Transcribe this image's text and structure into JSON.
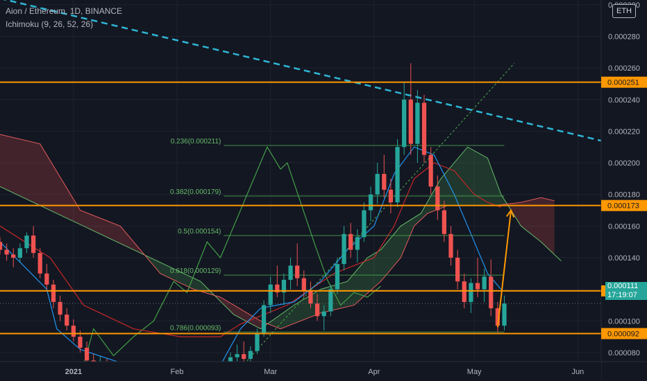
{
  "legend": {
    "title": "Aion / Ethereum, 1D, BINANCE",
    "indicator": "Ichimoku (9, 26, 52, 26)"
  },
  "currency_button": "ETH",
  "current_price": {
    "value": "0.000111",
    "timer": "17:19:07",
    "color": "#26a69a"
  },
  "chart_data": {
    "type": "line",
    "series_type": "candlestick",
    "x_tick_labels": [
      "2021",
      "Feb",
      "Mar",
      "Apr",
      "May",
      "Jun"
    ],
    "y_tick_labels": [
      "0.000080",
      "0.000100",
      "0.000120",
      "0.000140",
      "0.000160",
      "0.000180",
      "0.000200",
      "0.000220",
      "0.000240",
      "0.000260",
      "0.000280",
      "0.000300"
    ],
    "y_range": [
      6.2e-05,
      0.000303
    ],
    "x_range": [
      "2020-12-10",
      "2021-06-08"
    ],
    "horizontal_levels": [
      {
        "label": "0.000251",
        "value": 0.000251,
        "color": "#ff9800"
      },
      {
        "label": "0.000173",
        "value": 0.000173,
        "color": "#ff9800"
      },
      {
        "label": "0.000119",
        "value": 0.000119,
        "color": "#ff9800"
      },
      {
        "label": "0.000092",
        "value": 9.2e-05,
        "color": "#ff9800"
      }
    ],
    "fib_levels": [
      {
        "label": "0.236(0.000211)",
        "value": 0.000211
      },
      {
        "label": "0.382(0.000179)",
        "value": 0.000179
      },
      {
        "label": "0.5(0.000154)",
        "value": 0.000154
      },
      {
        "label": "0.618(0.000129)",
        "value": 0.000129
      },
      {
        "label": "0.786(0.000093)",
        "value": 9.3e-05
      }
    ],
    "fib_range": [
      "2021-02-15",
      "2021-05-10"
    ],
    "trendlines": [
      {
        "kind": "dashed-resistance",
        "from": [
          "2020-12-10",
          0.000304
        ],
        "to": [
          "2021-06-08",
          0.000214
        ],
        "color": "#2fb6d6"
      },
      {
        "kind": "dotted-support",
        "from": [
          "2021-02-17",
          6.3e-05
        ],
        "to": [
          "2021-05-13",
          0.000263
        ],
        "color": "#4caf50"
      }
    ],
    "arrow": {
      "from": [
        "2021-05-08",
        9.6e-05
      ],
      "to": [
        "2021-05-12",
        0.00017
      ],
      "color": "#ff9800"
    },
    "candles": [
      [
        "2020-12-10",
        0.00015,
        0.000153,
        0.000142,
        0.000145
      ],
      [
        "2020-12-12",
        0.000145,
        0.000149,
        0.000138,
        0.000142
      ],
      [
        "2020-12-14",
        0.000142,
        0.000146,
        0.000134,
        0.00014
      ],
      [
        "2020-12-16",
        0.00014,
        0.000149,
        0.000137,
        0.000146
      ],
      [
        "2020-12-18",
        0.000146,
        0.000156,
        0.000143,
        0.000154
      ],
      [
        "2020-12-20",
        0.000154,
        0.00016,
        0.00014,
        0.000143
      ],
      [
        "2020-12-22",
        0.000143,
        0.000146,
        0.000127,
        0.00013
      ],
      [
        "2020-12-24",
        0.00013,
        0.000136,
        0.00012,
        0.000123
      ],
      [
        "2020-12-26",
        0.000123,
        0.000126,
        0.000108,
        0.000112
      ],
      [
        "2020-12-28",
        0.000112,
        0.000116,
        0.0001,
        0.000104
      ],
      [
        "2020-12-30",
        0.000104,
        0.000108,
        9.4e-05,
        9.7e-05
      ],
      [
        "2021-01-01",
        9.7e-05,
        0.000101,
        8.7e-05,
        9e-05
      ],
      [
        "2021-01-03",
        9e-05,
        9.4e-05,
        8e-05,
        8.3e-05
      ],
      [
        "2021-01-05",
        8.3e-05,
        8.7e-05,
        7.1e-05,
        7.5e-05
      ],
      [
        "2021-01-07",
        7.5e-05,
        7.9e-05,
        6.4e-05,
        6.8e-05
      ],
      [
        "2021-01-09",
        6.8e-05,
        7.8e-05,
        6.6e-05,
        7.4e-05
      ],
      [
        "2021-01-11",
        7.4e-05,
        7.6e-05,
        6.2e-05,
        6.5e-05
      ],
      [
        "2021-01-13",
        6.5e-05,
        7.2e-05,
        6.2e-05,
        6.9e-05
      ],
      [
        "2021-01-16",
        6.9e-05,
        7.2e-05,
        6.2e-05,
        6.4e-05
      ],
      [
        "2021-01-19",
        6.4e-05,
        7e-05,
        6.2e-05,
        6.7e-05
      ],
      [
        "2021-01-22",
        6.7e-05,
        6.9e-05,
        6.2e-05,
        6.4e-05
      ],
      [
        "2021-01-25",
        6.4e-05,
        6.8e-05,
        6.2e-05,
        6.6e-05
      ],
      [
        "2021-01-28",
        6.6e-05,
        6.8e-05,
        6.2e-05,
        6.3e-05
      ],
      [
        "2021-01-31",
        6.3e-05,
        6.7e-05,
        6.2e-05,
        6.5e-05
      ],
      [
        "2021-02-03",
        6.5e-05,
        6.6e-05,
        6.2e-05,
        6.3e-05
      ],
      [
        "2021-02-06",
        6.3e-05,
        6.6e-05,
        6.2e-05,
        6.4e-05
      ],
      [
        "2021-02-09",
        6.4e-05,
        6.6e-05,
        6.2e-05,
        6.3e-05
      ],
      [
        "2021-02-12",
        6.3e-05,
        6.6e-05,
        6.2e-05,
        6.4e-05
      ],
      [
        "2021-02-15",
        6.4e-05,
        7.1e-05,
        6.2e-05,
        6.9e-05
      ],
      [
        "2021-02-17",
        6.9e-05,
        8e-05,
        6.7e-05,
        7.7e-05
      ],
      [
        "2021-02-19",
        7.7e-05,
        8.5e-05,
        7.3e-05,
        7.9e-05
      ],
      [
        "2021-02-21",
        7.9e-05,
        8.7e-05,
        7.4e-05,
        7.6e-05
      ],
      [
        "2021-02-23",
        7.6e-05,
        8.4e-05,
        7.2e-05,
        8.1e-05
      ],
      [
        "2021-02-25",
        8.1e-05,
        9.5e-05,
        7.9e-05,
        9.2e-05
      ],
      [
        "2021-02-27",
        9.2e-05,
        0.000113,
        9e-05,
        0.00011
      ],
      [
        "2021-03-01",
        0.00011,
        0.000128,
        0.000105,
        0.000123
      ],
      [
        "2021-03-03",
        0.000123,
        0.000135,
        0.000115,
        0.000118
      ],
      [
        "2021-03-05",
        0.000118,
        0.00013,
        0.00011,
        0.000126
      ],
      [
        "2021-03-07",
        0.000126,
        0.00014,
        0.00012,
        0.000135
      ],
      [
        "2021-03-09",
        0.000135,
        0.000149,
        0.000122,
        0.000127
      ],
      [
        "2021-03-11",
        0.000127,
        0.000132,
        0.000115,
        0.000119
      ],
      [
        "2021-03-13",
        0.000119,
        0.000125,
        0.000108,
        0.000111
      ],
      [
        "2021-03-15",
        0.000111,
        0.000117,
        0.0001,
        0.000103
      ],
      [
        "2021-03-17",
        0.000103,
        0.00011,
        9.4e-05,
        0.000106
      ],
      [
        "2021-03-19",
        0.000106,
        0.000123,
        0.000103,
        0.00012
      ],
      [
        "2021-03-21",
        0.00012,
        0.00014,
        0.000117,
        0.000136
      ],
      [
        "2021-03-23",
        0.000136,
        0.00016,
        0.000132,
        0.000155
      ],
      [
        "2021-03-25",
        0.000155,
        0.000162,
        0.00014,
        0.000145
      ],
      [
        "2021-03-27",
        0.000145,
        0.000158,
        0.000137,
        0.000153
      ],
      [
        "2021-03-29",
        0.000153,
        0.000175,
        0.00015,
        0.00017
      ],
      [
        "2021-03-31",
        0.00017,
        0.000185,
        0.000163,
        0.00018
      ],
      [
        "2021-04-02",
        0.00018,
        0.0002,
        0.000174,
        0.000193
      ],
      [
        "2021-04-04",
        0.000193,
        0.000205,
        0.000178,
        0.000183
      ],
      [
        "2021-04-06",
        0.000183,
        0.00019,
        0.000168,
        0.000175
      ],
      [
        "2021-04-08",
        0.000175,
        0.000215,
        0.000172,
        0.00021
      ],
      [
        "2021-04-10",
        0.00021,
        0.000251,
        0.000205,
        0.00024
      ],
      [
        "2021-04-12",
        0.00024,
        0.000263,
        0.000205,
        0.000212
      ],
      [
        "2021-04-14",
        0.000212,
        0.000246,
        0.0002,
        0.000238
      ],
      [
        "2021-04-16",
        0.000238,
        0.000243,
        0.0002,
        0.000205
      ],
      [
        "2021-04-18",
        0.000205,
        0.00021,
        0.00018,
        0.000185
      ],
      [
        "2021-04-20",
        0.000185,
        0.000192,
        0.000164,
        0.00017
      ],
      [
        "2021-04-22",
        0.00017,
        0.000176,
        0.00015,
        0.000155
      ],
      [
        "2021-04-24",
        0.000155,
        0.00016,
        0.000135,
        0.00014
      ],
      [
        "2021-04-26",
        0.00014,
        0.000145,
        0.00012,
        0.000125
      ],
      [
        "2021-04-28",
        0.000125,
        0.00013,
        0.000108,
        0.000112
      ],
      [
        "2021-04-30",
        0.000112,
        0.000127,
        0.000105,
        0.000124
      ],
      [
        "2021-05-02",
        0.000124,
        0.00014,
        0.000115,
        0.00012
      ],
      [
        "2021-05-04",
        0.00012,
        0.000133,
        0.000112,
        0.000128
      ],
      [
        "2021-05-06",
        0.000128,
        0.000139,
        0.000103,
        0.000108
      ],
      [
        "2021-05-08",
        0.000108,
        0.000112,
        9.3e-05,
        9.7e-05
      ],
      [
        "2021-05-10",
        9.7e-05,
        0.000116,
        9.4e-05,
        0.000111
      ]
    ],
    "ichimoku": {
      "tenkan": [
        [
          0,
          0.00015
        ],
        [
          14,
          0.00012
        ],
        [
          17,
          9.5e-05
        ],
        [
          24,
          8.2e-05
        ],
        [
          34,
          7.5e-05
        ],
        [
          44,
          6.8e-05
        ],
        [
          56,
          6.6e-05
        ],
        [
          66,
          7.2e-05
        ],
        [
          72,
          9.5e-05
        ],
        [
          78,
          0.000108
        ],
        [
          88,
          0.000112
        ],
        [
          96,
          0.000125
        ],
        [
          104,
          0.000145
        ],
        [
          112,
          0.00016
        ],
        [
          118,
          0.000193
        ],
        [
          124,
          0.00021
        ],
        [
          130,
          0.000205
        ],
        [
          136,
          0.00018
        ],
        [
          142,
          0.00015
        ],
        [
          146,
          0.00013
        ],
        [
          150,
          0.00012
        ]
      ],
      "kijun": [
        [
          0,
          0.00016
        ],
        [
          15,
          0.00014
        ],
        [
          25,
          0.00011
        ],
        [
          40,
          9.5e-05
        ],
        [
          54,
          9e-05
        ],
        [
          66,
          9e-05
        ],
        [
          72,
          9.8e-05
        ],
        [
          86,
          0.00011
        ],
        [
          100,
          0.00013
        ],
        [
          112,
          0.00014
        ],
        [
          118,
          0.00016
        ],
        [
          124,
          0.00019
        ],
        [
          130,
          0.0002
        ],
        [
          136,
          0.000195
        ],
        [
          142,
          0.00018
        ],
        [
          146,
          0.000175
        ],
        [
          150,
          0.000172
        ]
      ],
      "chikou": [
        [
          0,
          6e-05
        ],
        [
          8,
          7.2e-05
        ],
        [
          16,
          7.4e-05
        ],
        [
          24,
          6.4e-05
        ],
        [
          28,
          9.5e-05
        ],
        [
          34,
          7.8e-05
        ],
        [
          40,
          9e-05
        ],
        [
          46,
          0.0001
        ],
        [
          52,
          0.000125
        ],
        [
          56,
          0.000118
        ],
        [
          62,
          0.00015
        ],
        [
          66,
          0.00014
        ],
        [
          70,
          0.00016
        ],
        [
          76,
          0.00019
        ],
        [
          80,
          0.00021
        ],
        [
          84,
          0.000196
        ],
        [
          86,
          0.0002
        ],
        [
          90,
          0.000175
        ],
        [
          94,
          0.00015
        ],
        [
          98,
          0.000126
        ],
        [
          102,
          0.00011
        ],
        [
          106,
          0.000118
        ],
        [
          110,
          0.000115
        ],
        [
          114,
          0.000122
        ]
      ],
      "span_a": [
        [
          0,
          0.000185
        ],
        [
          20,
          0.000165
        ],
        [
          40,
          0.000145
        ],
        [
          60,
          0.000125
        ],
        [
          70,
          0.000104
        ],
        [
          78,
          9.5e-05
        ],
        [
          88,
          0.00011
        ],
        [
          96,
          0.00012
        ],
        [
          104,
          0.000125
        ],
        [
          110,
          0.00014
        ],
        [
          114,
          0.000145
        ],
        [
          120,
          0.00016
        ],
        [
          126,
          0.000168
        ],
        [
          132,
          0.00019
        ],
        [
          136,
          0.0002
        ],
        [
          140,
          0.00021
        ],
        [
          146,
          0.000203
        ],
        [
          150,
          0.00018
        ],
        [
          156,
          0.00016
        ],
        [
          162,
          0.00015
        ],
        [
          168,
          0.000138
        ]
      ],
      "span_b": [
        [
          0,
          0.000218
        ],
        [
          12,
          0.000212
        ],
        [
          24,
          0.00017
        ],
        [
          36,
          0.00016
        ],
        [
          48,
          0.00013
        ],
        [
          58,
          0.00012
        ],
        [
          66,
          0.000115
        ],
        [
          78,
          0.0001
        ],
        [
          84,
          9.5e-05
        ],
        [
          96,
          0.000105
        ],
        [
          106,
          0.00011
        ],
        [
          114,
          0.000125
        ],
        [
          120,
          0.00014
        ],
        [
          124,
          0.00016
        ],
        [
          128,
          0.000168
        ],
        [
          134,
          0.000173
        ],
        [
          140,
          0.000173
        ],
        [
          148,
          0.000173
        ],
        [
          156,
          0.000175
        ],
        [
          162,
          0.000178
        ],
        [
          166,
          0.000176
        ]
      ]
    }
  }
}
